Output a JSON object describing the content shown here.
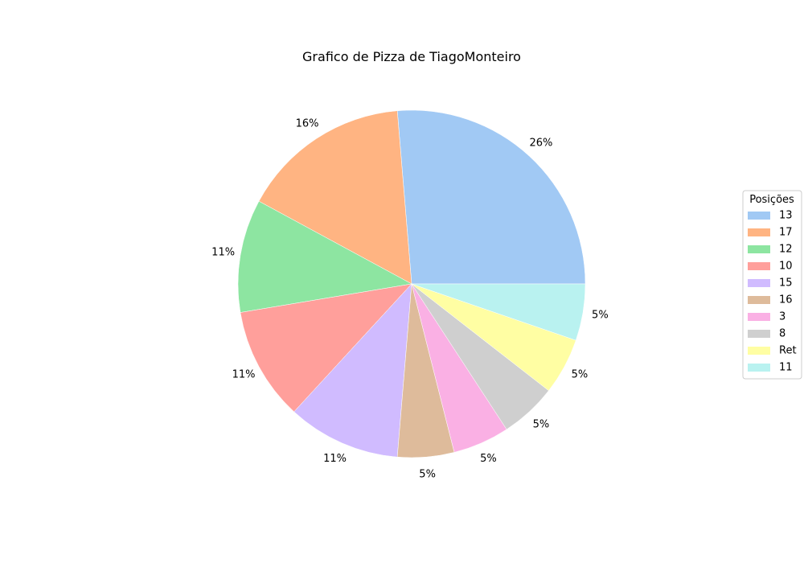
{
  "chart_data": {
    "type": "pie",
    "title": "Grafico de Pizza de TiagoMonteiro",
    "categories": [
      "13",
      "17",
      "12",
      "10",
      "15",
      "16",
      "3",
      "8",
      "Ret",
      "11"
    ],
    "values": [
      5,
      3,
      2,
      2,
      2,
      1,
      1,
      1,
      1,
      1
    ],
    "labels": [
      "26%",
      "16%",
      "11%",
      "11%",
      "11%",
      "5%",
      "5%",
      "5%",
      "5%",
      "5%"
    ],
    "colors": [
      "#a1c9f4",
      "#ffb482",
      "#8de5a1",
      "#ff9f9b",
      "#d0bbff",
      "#debb9b",
      "#fab0e4",
      "#cfcfcf",
      "#fffea3",
      "#b9f2f0"
    ],
    "start_angle_deg": 0,
    "direction": "counterclockwise",
    "legend": {
      "title": "Posições",
      "placement": "right"
    }
  }
}
